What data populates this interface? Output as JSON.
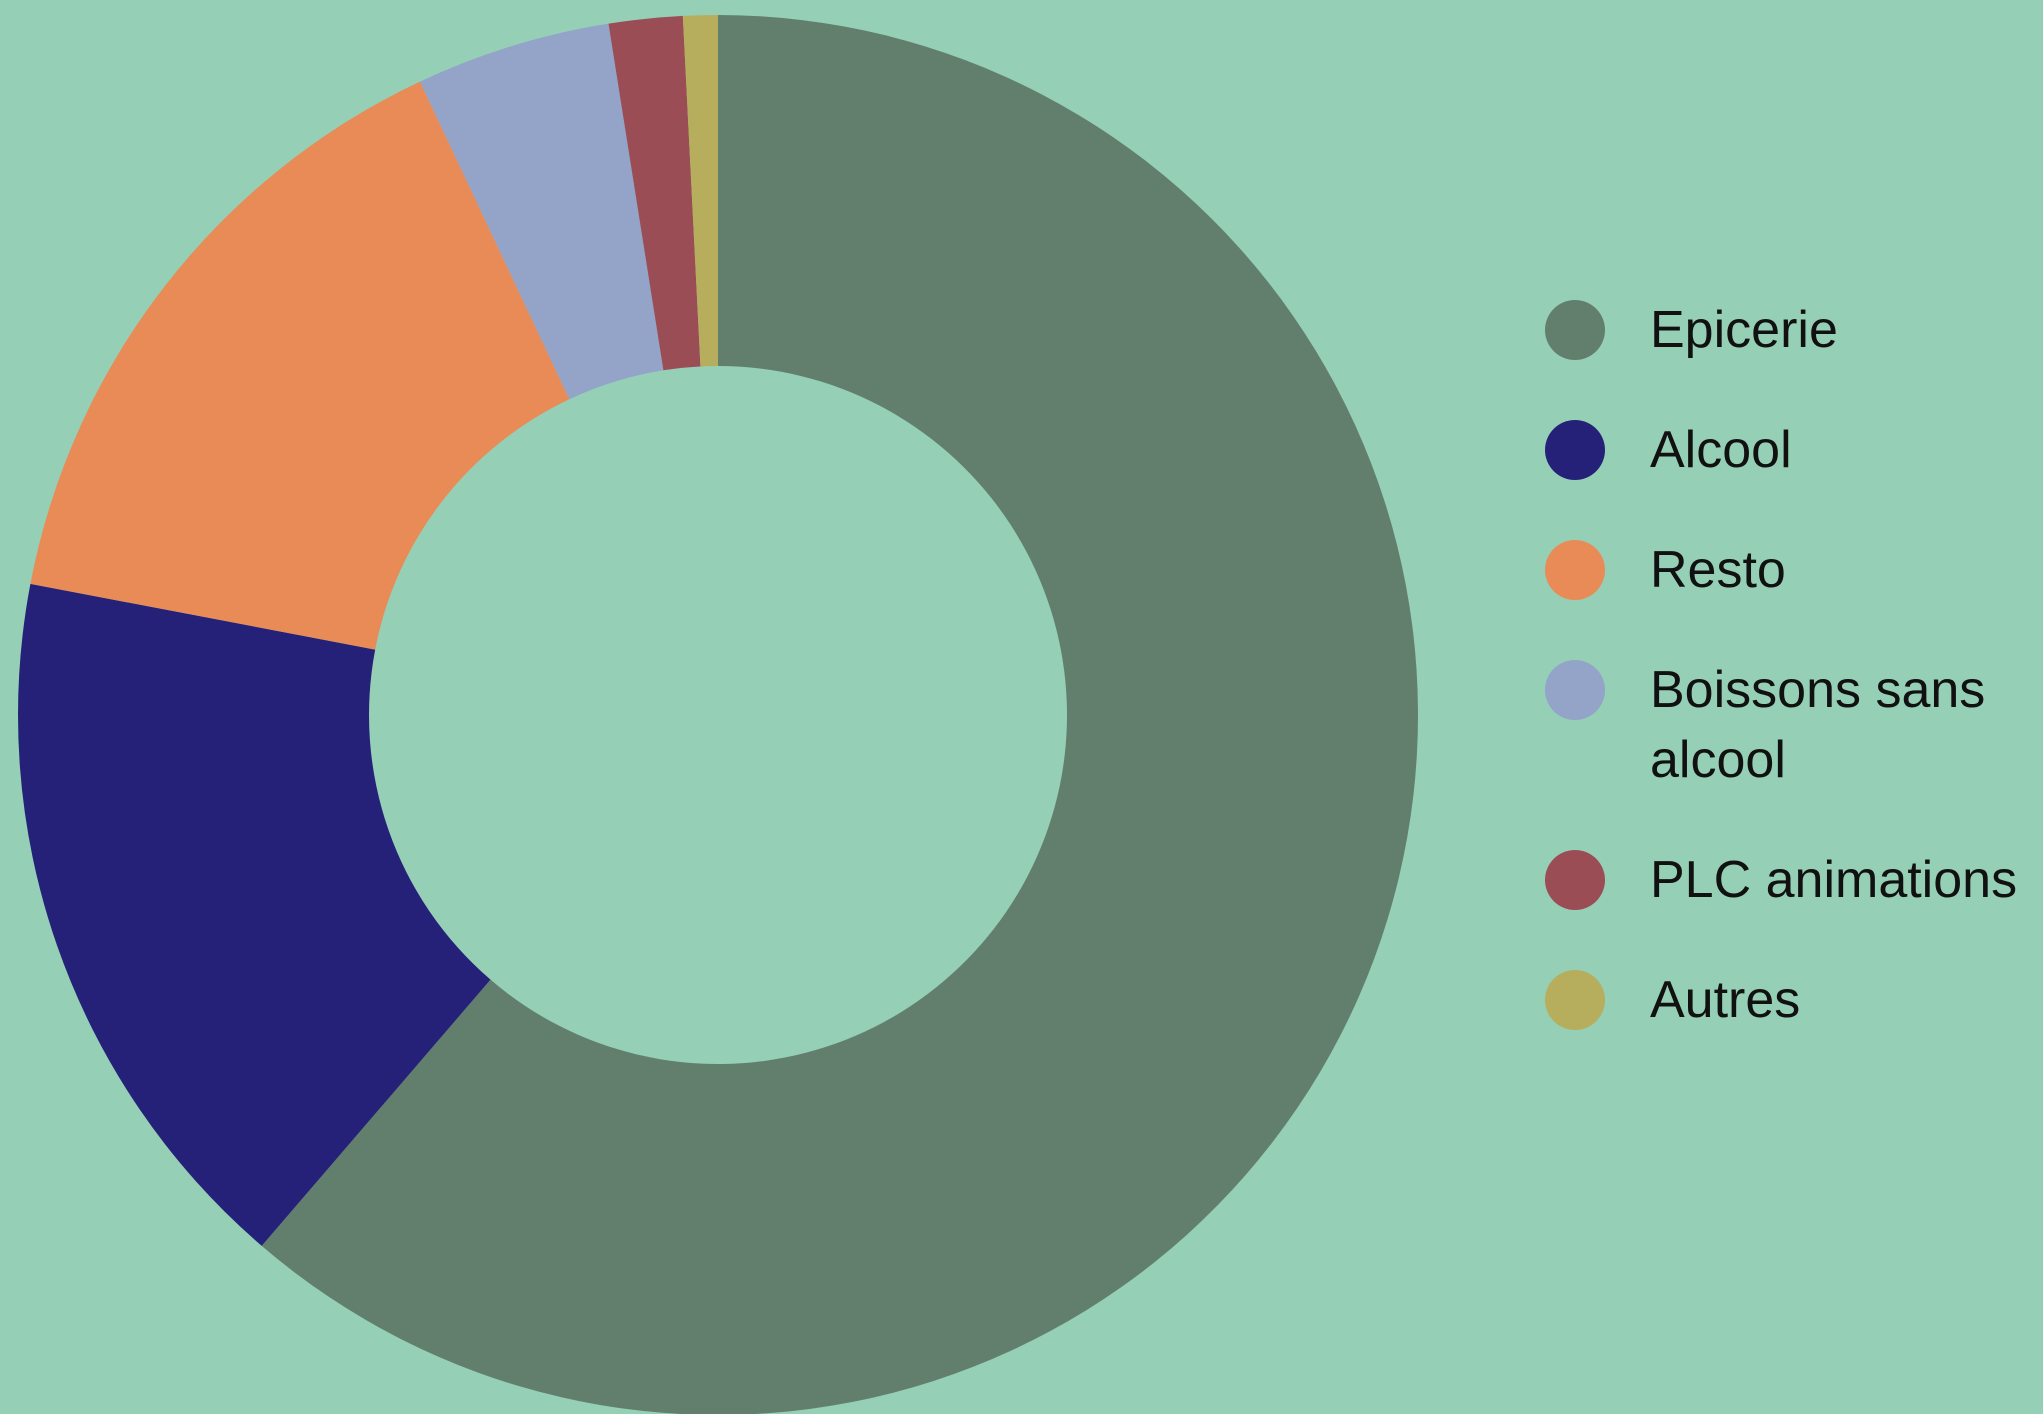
{
  "chart_data": {
    "type": "donut",
    "categories": [
      "Epicerie",
      "Alcool",
      "Resto",
      "Boissons sans alcool",
      "PLC animations",
      "Autres"
    ],
    "values": [
      61.3,
      16.7,
      15,
      4.5,
      1.7,
      0.8
    ],
    "colors": [
      "#627f6d",
      "#252178",
      "#e98b56",
      "#94a3c8",
      "#9b4d56",
      "#b6ad5d"
    ]
  }
}
